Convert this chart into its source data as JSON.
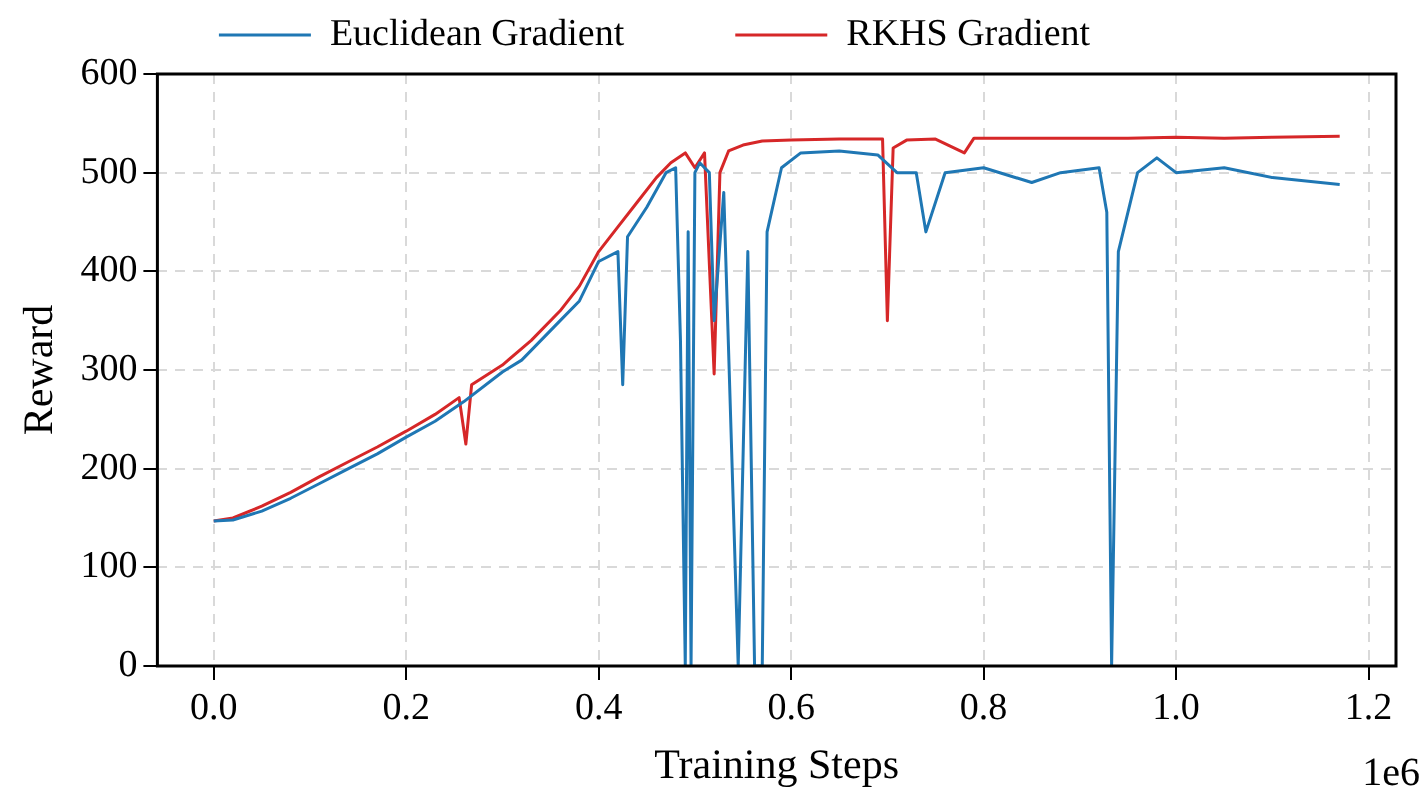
{
  "chart_data": {
    "type": "line",
    "xlabel": "Training Steps",
    "ylabel": "Reward",
    "annotations": [
      "1e6"
    ],
    "xlim": [
      -0.0585,
      1.2285
    ],
    "xticks": [
      {
        "value": 0,
        "label": "0.0"
      },
      0.2,
      0.4,
      0.6,
      0.8,
      {
        "value": 1,
        "label": "1.0"
      },
      1.2
    ],
    "ylim": [
      0,
      600
    ],
    "yticks": [
      0,
      100,
      200,
      300,
      400,
      500,
      600
    ],
    "grid": true,
    "legend": "top",
    "marker": "none",
    "line_style": "solid",
    "series": [
      {
        "name": "Euclidean Gradient",
        "color": "#1f77b4",
        "x": [
          0,
          0.02,
          0.05,
          0.08,
          0.11,
          0.14,
          0.17,
          0.2,
          0.23,
          0.26,
          0.3,
          0.32,
          0.34,
          0.36,
          0.38,
          0.4,
          0.42,
          0.425,
          0.43,
          0.45,
          0.47,
          0.48,
          0.485,
          0.49,
          0.493,
          0.496,
          0.5,
          0.505,
          0.515,
          0.52,
          0.53,
          0.545,
          0.555,
          0.562,
          0.57,
          0.575,
          0.59,
          0.61,
          0.65,
          0.69,
          0.71,
          0.73,
          0.74,
          0.76,
          0.8,
          0.85,
          0.88,
          0.92,
          0.928,
          0.933,
          0.94,
          0.96,
          0.98,
          1,
          1.05,
          1.1,
          1.17
        ],
        "values": [
          147,
          148,
          157,
          170,
          185,
          200,
          215,
          232,
          248,
          268,
          298,
          310,
          330,
          350,
          370,
          410,
          420,
          285,
          435,
          465,
          500,
          505,
          330,
          0,
          440,
          0,
          500,
          510,
          500,
          350,
          480,
          0,
          420,
          0,
          0,
          440,
          505,
          520,
          522,
          518,
          500,
          500,
          440,
          500,
          505,
          490,
          500,
          505,
          460,
          0,
          420,
          500,
          515,
          500,
          505,
          495,
          488
        ]
      },
      {
        "name": "RKHS Gradient",
        "color": "#d62728",
        "x": [
          0,
          0.02,
          0.05,
          0.08,
          0.11,
          0.14,
          0.17,
          0.2,
          0.23,
          0.255,
          0.262,
          0.268,
          0.3,
          0.33,
          0.36,
          0.38,
          0.4,
          0.42,
          0.44,
          0.46,
          0.475,
          0.49,
          0.5,
          0.51,
          0.52,
          0.526,
          0.535,
          0.55,
          0.57,
          0.6,
          0.65,
          0.695,
          0.7,
          0.706,
          0.72,
          0.75,
          0.78,
          0.79,
          0.85,
          0.9,
          0.95,
          1,
          1.05,
          1.1,
          1.17
        ],
        "values": [
          147,
          150,
          162,
          176,
          192,
          207,
          222,
          238,
          255,
          272,
          225,
          285,
          305,
          330,
          360,
          385,
          420,
          445,
          470,
          495,
          510,
          520,
          505,
          520,
          296,
          500,
          522,
          528,
          532,
          533,
          534,
          534,
          350,
          525,
          533,
          534,
          520,
          535,
          535,
          535,
          535,
          536,
          535,
          536,
          537
        ]
      }
    ]
  }
}
